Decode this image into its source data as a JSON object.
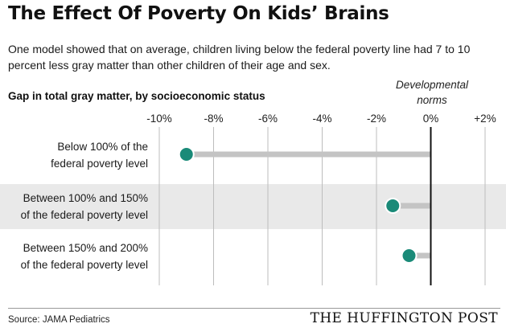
{
  "title": "The Effect Of Poverty On Kids’ Brains",
  "subtitle": "One model showed that on average, children living below the federal poverty line had 7 to 10 percent less gray matter than other children of their age and sex.",
  "source": "Source: JAMA Pediatrics",
  "brand": "THE HUFFINGTON POST",
  "chart_data": {
    "type": "dot",
    "title": "",
    "ylabel": "Gap in total gray matter, by socioeconomic status",
    "xlabel": "",
    "reference_label": "Developmental norms",
    "reference_value": 0,
    "xlim": [
      -10,
      2
    ],
    "xticks": [
      -10,
      -8,
      -6,
      -4,
      -2,
      0,
      2
    ],
    "xtick_labels": [
      "-10%",
      "-8%",
      "-6%",
      "-4%",
      "-2%",
      "0%",
      "+2%"
    ],
    "grid": true,
    "categories": [
      [
        "Below 100% of the",
        "federal poverty level"
      ],
      [
        "Between 100% and 150%",
        "of the federal poverty level"
      ],
      [
        "Between 150% and 200%",
        "of the federal poverty level"
      ]
    ],
    "values": [
      -9.0,
      -1.4,
      -0.8
    ],
    "colors": {
      "dot": "#1a8a78",
      "bar": "#c4c4c4",
      "band": "#e9e9e9",
      "grid": "#bdbdbd",
      "reference": "#111111"
    }
  }
}
